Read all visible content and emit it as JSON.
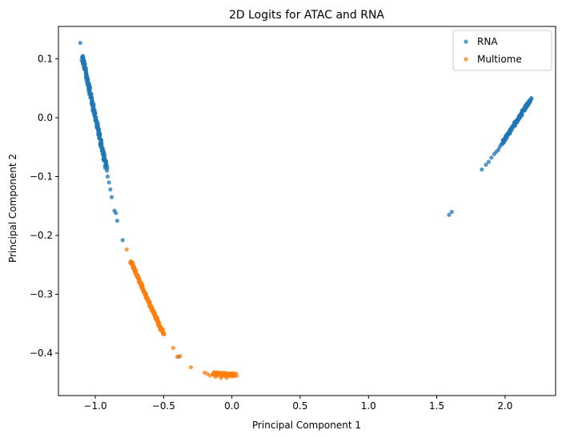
{
  "chart_data": {
    "type": "scatter",
    "title": "2D Logits for ATAC and RNA",
    "xlabel": "Principal Component 1",
    "ylabel": "Principal Component 2",
    "xlim": [
      -1.27,
      2.37
    ],
    "ylim": [
      -0.472,
      0.155
    ],
    "xticks": [
      -1.0,
      -0.5,
      0.0,
      0.5,
      1.0,
      1.5,
      2.0
    ],
    "xtick_labels": [
      "−1.0",
      "−0.5",
      "0.0",
      "0.5",
      "1.0",
      "1.5",
      "2.0"
    ],
    "yticks": [
      0.1,
      0.0,
      -0.1,
      -0.2,
      -0.3,
      -0.4
    ],
    "ytick_labels": [
      "0.1",
      "0.0",
      "−0.1",
      "−0.2",
      "−0.3",
      "−0.4"
    ],
    "grid": false,
    "legend_position": "top-right",
    "series": [
      {
        "name": "RNA",
        "color": "#1f77b4",
        "segments": [
          {
            "from": [
              -1.095,
              0.104
            ],
            "to": [
              -0.92,
              -0.085
            ],
            "count": 170,
            "jitter": [
              0.008,
              0.002
            ]
          },
          {
            "from": [
              1.98,
              -0.043
            ],
            "to": [
              2.19,
              0.032
            ],
            "count": 120,
            "jitter": [
              0.007,
              0.002
            ]
          }
        ],
        "points": [
          [
            -1.11,
            0.127
          ],
          [
            -1.1,
            0.097
          ],
          [
            -1.09,
            0.092
          ],
          [
            -1.08,
            0.082
          ],
          [
            -1.06,
            0.07
          ],
          [
            -1.04,
            0.05
          ],
          [
            -0.915,
            -0.09
          ],
          [
            -0.91,
            -0.1
          ],
          [
            -0.9,
            -0.11
          ],
          [
            -0.89,
            -0.122
          ],
          [
            -0.88,
            -0.135
          ],
          [
            -0.86,
            -0.158
          ],
          [
            -0.85,
            -0.162
          ],
          [
            -0.84,
            -0.175
          ],
          [
            -0.8,
            -0.208
          ],
          [
            -0.39,
            -0.406
          ],
          [
            1.59,
            -0.165
          ],
          [
            1.61,
            -0.16
          ],
          [
            1.83,
            -0.088
          ],
          [
            1.86,
            -0.08
          ],
          [
            1.88,
            -0.075
          ],
          [
            1.9,
            -0.068
          ],
          [
            1.92,
            -0.062
          ],
          [
            1.935,
            -0.058
          ],
          [
            1.95,
            -0.055
          ],
          [
            1.96,
            -0.05
          ],
          [
            1.97,
            -0.046
          ]
        ]
      },
      {
        "name": "Multiome",
        "color": "#ff7f0e",
        "segments": [
          {
            "from": [
              -0.74,
              -0.245
            ],
            "to": [
              -0.5,
              -0.368
            ],
            "count": 170,
            "jitter": [
              0.006,
              0.002
            ]
          },
          {
            "from": [
              -0.14,
              -0.435
            ],
            "to": [
              0.03,
              -0.437
            ],
            "count": 70,
            "jitter": [
              0.01,
              0.003
            ]
          }
        ],
        "points": [
          [
            -0.77,
            -0.224
          ],
          [
            -0.43,
            -0.391
          ],
          [
            -0.4,
            -0.406
          ],
          [
            -0.38,
            -0.405
          ],
          [
            -0.3,
            -0.424
          ],
          [
            -0.2,
            -0.433
          ],
          [
            -0.18,
            -0.435
          ],
          [
            -0.16,
            -0.438
          ],
          [
            -0.12,
            -0.44
          ],
          [
            -0.08,
            -0.442
          ],
          [
            -0.04,
            -0.442
          ]
        ]
      }
    ]
  }
}
